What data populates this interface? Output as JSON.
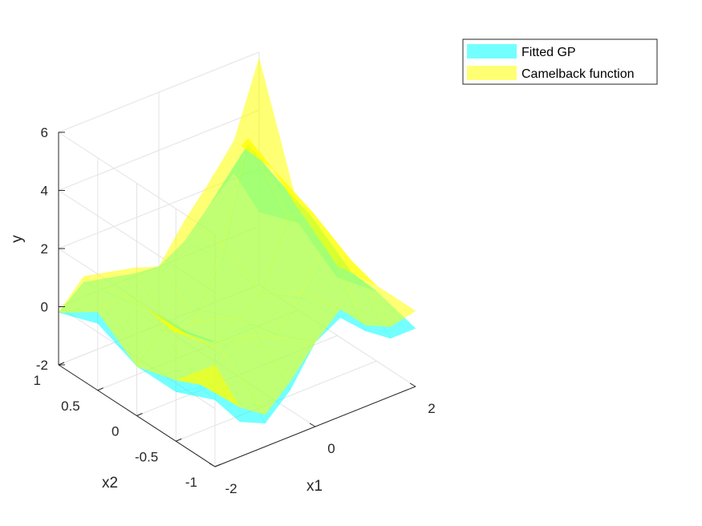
{
  "chart_data": {
    "type": "surface3d",
    "title": "",
    "xlabel": "x1",
    "ylabel": "x2",
    "zlabel": "y",
    "xlim": [
      -2,
      2
    ],
    "ylim": [
      -1,
      1
    ],
    "zlim": [
      -2,
      6
    ],
    "x_ticks": [
      {
        "value": -2,
        "label": "-2"
      },
      {
        "value": 0,
        "label": "0"
      },
      {
        "value": 2,
        "label": "2"
      }
    ],
    "y_ticks": [
      {
        "value": -1,
        "label": "-1"
      },
      {
        "value": -0.5,
        "label": "-0.5"
      },
      {
        "value": 0,
        "label": "0"
      },
      {
        "value": 0.5,
        "label": "0.5"
      },
      {
        "value": 1,
        "label": "1"
      }
    ],
    "z_ticks": [
      {
        "value": -2,
        "label": "-2"
      },
      {
        "value": 0,
        "label": "0"
      },
      {
        "value": 2,
        "label": "2"
      },
      {
        "value": 4,
        "label": "4"
      },
      {
        "value": 6,
        "label": "6"
      }
    ],
    "grid": true,
    "legend_position": "top-right",
    "series": [
      {
        "name": "Fitted GP",
        "color": "#00ffff",
        "opacity": 0.55,
        "x1": [
          -2.0,
          -1.5,
          -1.0,
          -0.5,
          0.0,
          0.5,
          1.0,
          1.5,
          2.0
        ],
        "x2": [
          -1.0,
          -0.5,
          0.0,
          0.5,
          1.0
        ],
        "y": [
          [
            0.3,
            -0.8,
            -1.2,
            -0.4,
            0.9,
            1.4,
            0.6,
            0.0,
            0.0
          ],
          [
            -0.3,
            -0.5,
            0.6,
            1.0,
            0.3,
            1.2,
            2.3,
            1.4,
            0.4
          ],
          [
            -0.3,
            0.6,
            0.2,
            -0.5,
            0.0,
            0.5,
            2.6,
            2.4,
            0.0
          ],
          [
            0.3,
            0.8,
            0.1,
            -0.9,
            -0.6,
            0.8,
            4.4,
            3.0,
            1.0
          ],
          [
            -0.2,
            0.5,
            0.3,
            0.1,
            0.0,
            0.5,
            1.4,
            2.2,
            0.5
          ]
        ]
      },
      {
        "name": "Camelback function",
        "color": "#ffff00",
        "opacity": 0.55,
        "x1": [
          -2.0,
          -1.5,
          -1.0,
          -0.5,
          0.0,
          0.5,
          1.0,
          1.5,
          2.0
        ],
        "x2": [
          -1.0,
          -0.5,
          0.0,
          0.5,
          1.0
        ],
        "y": [
          [
            1.5,
            -0.3,
            -0.9,
            -0.1,
            0.9,
            1.7,
            0.8,
            0.4,
            0.6
          ],
          [
            0.1,
            -0.4,
            0.3,
            0.6,
            0.2,
            1.4,
            2.8,
            1.8,
            0.6
          ],
          [
            -0.3,
            0.7,
            0.1,
            -0.6,
            0.0,
            0.4,
            2.8,
            2.6,
            0.4
          ],
          [
            0.7,
            0.9,
            0.1,
            -1.0,
            -1.0,
            1.3,
            4.6,
            3.2,
            1.5
          ],
          [
            -0.2,
            0.7,
            0.5,
            0.3,
            0.0,
            1.2,
            2.2,
            3.3,
            5.8
          ]
        ]
      }
    ]
  }
}
